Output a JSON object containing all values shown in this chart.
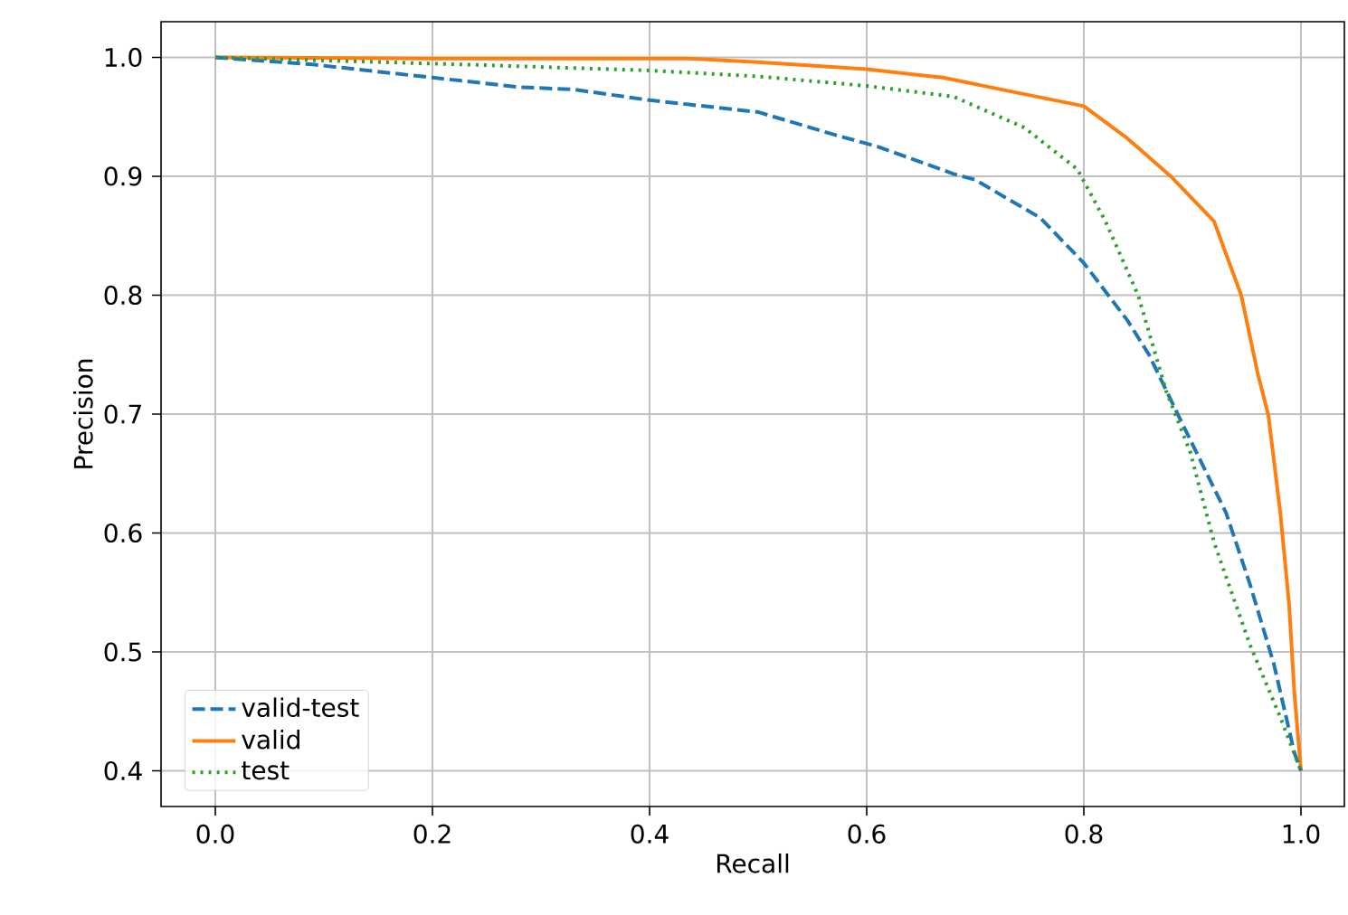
{
  "chart_data": {
    "type": "line",
    "xlabel": "Recall",
    "ylabel": "Precision",
    "xlim": [
      -0.05,
      1.04
    ],
    "ylim": [
      0.37,
      1.03
    ],
    "xticks": [
      {
        "value": 0,
        "label": "0.0"
      },
      0.2,
      0.4,
      0.6,
      0.8,
      {
        "value": 1,
        "label": "1.0"
      }
    ],
    "yticks": [
      0.4,
      0.5,
      0.6,
      0.7,
      0.8,
      0.9,
      {
        "value": 1,
        "label": "1.0"
      }
    ],
    "grid": true,
    "legend": "bottom left",
    "series": [
      {
        "name": "valid-test",
        "color": "#1f77b4",
        "line_style": "dashed",
        "x": [
          0,
          0.09,
          0.2,
          0.28,
          0.33,
          0.4,
          0.5,
          0.57,
          0.61,
          0.68,
          0.7,
          0.76,
          0.8,
          0.84,
          0.86,
          0.887,
          0.931,
          0.953,
          0.975,
          0.994,
          1.0
        ],
        "values": [
          1.0,
          0.994,
          0.983,
          0.975,
          0.973,
          0.964,
          0.954,
          0.935,
          0.925,
          0.902,
          0.897,
          0.865,
          0.827,
          0.779,
          0.75,
          0.699,
          0.617,
          0.557,
          0.49,
          0.415,
          0.4
        ]
      },
      {
        "name": "valid",
        "color": "#ff7f0e",
        "line_style": "solid",
        "x": [
          0,
          0.2,
          0.435,
          0.5,
          0.6,
          0.67,
          0.74,
          0.8,
          0.84,
          0.88,
          0.92,
          0.945,
          0.96,
          0.97,
          0.981,
          0.989,
          0.994,
          1.0
        ],
        "values": [
          1.0,
          0.999,
          0.999,
          0.996,
          0.99,
          0.983,
          0.97,
          0.959,
          0.932,
          0.9,
          0.862,
          0.8,
          0.735,
          0.699,
          0.617,
          0.541,
          0.465,
          0.4
        ]
      },
      {
        "name": "test",
        "color": "#2ca02c",
        "line_style": "dotted",
        "x": [
          0,
          0.23,
          0.4,
          0.5,
          0.6,
          0.68,
          0.745,
          0.794,
          0.82,
          0.85,
          0.876,
          0.898,
          0.92,
          0.953,
          0.981,
          1.0
        ],
        "values": [
          1.0,
          0.994,
          0.989,
          0.984,
          0.976,
          0.967,
          0.941,
          0.906,
          0.862,
          0.8,
          0.719,
          0.668,
          0.592,
          0.506,
          0.445,
          0.4
        ]
      }
    ]
  }
}
